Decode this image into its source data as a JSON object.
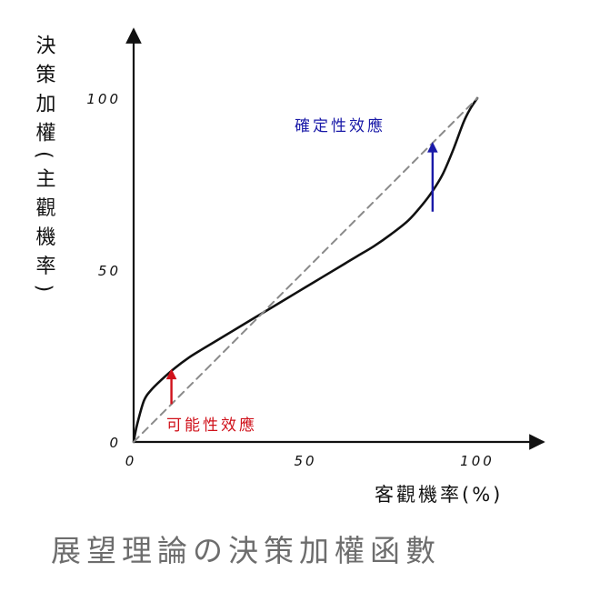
{
  "chart_data": {
    "type": "line",
    "title": "展望理論の決策加權函數",
    "xlabel": "客觀機率(%)",
    "ylabel": "決策加權(主觀機率)",
    "xlim": [
      0,
      120
    ],
    "ylim": [
      0,
      120
    ],
    "xticks": [
      0,
      50,
      100
    ],
    "yticks": [
      0,
      50,
      100
    ],
    "x_tick_labels": [
      "0",
      "50",
      "100"
    ],
    "y_tick_labels": [
      "0",
      "50",
      "100"
    ],
    "grid": false,
    "series": [
      {
        "style": "solid",
        "color": "#111111",
        "x": [
          0,
          1,
          3,
          5,
          8,
          12,
          16,
          20,
          25,
          30,
          35,
          40,
          45,
          50,
          55,
          60,
          65,
          70,
          75,
          80,
          84,
          87,
          90,
          93,
          96,
          98,
          100
        ],
        "y": [
          0,
          5,
          12,
          15,
          18,
          21.5,
          24.5,
          27,
          30,
          33,
          36,
          39,
          42,
          45,
          48,
          51,
          54,
          57,
          60.5,
          64.5,
          69,
          73,
          78,
          85,
          93,
          97,
          100
        ]
      },
      {
        "style": "dashed",
        "color": "#8a8a8a",
        "x": [
          0,
          100
        ],
        "y": [
          0,
          100
        ]
      }
    ],
    "annotations": [
      {
        "text": "可能性效應",
        "color": "#d0121b",
        "arrow_x": 11,
        "arrow_from_y": 11,
        "arrow_to_y": 21
      },
      {
        "text": "確定性效應",
        "color": "#1a1aa8",
        "arrow_x": 87,
        "arrow_from_y": 67,
        "arrow_to_y": 87
      }
    ]
  }
}
